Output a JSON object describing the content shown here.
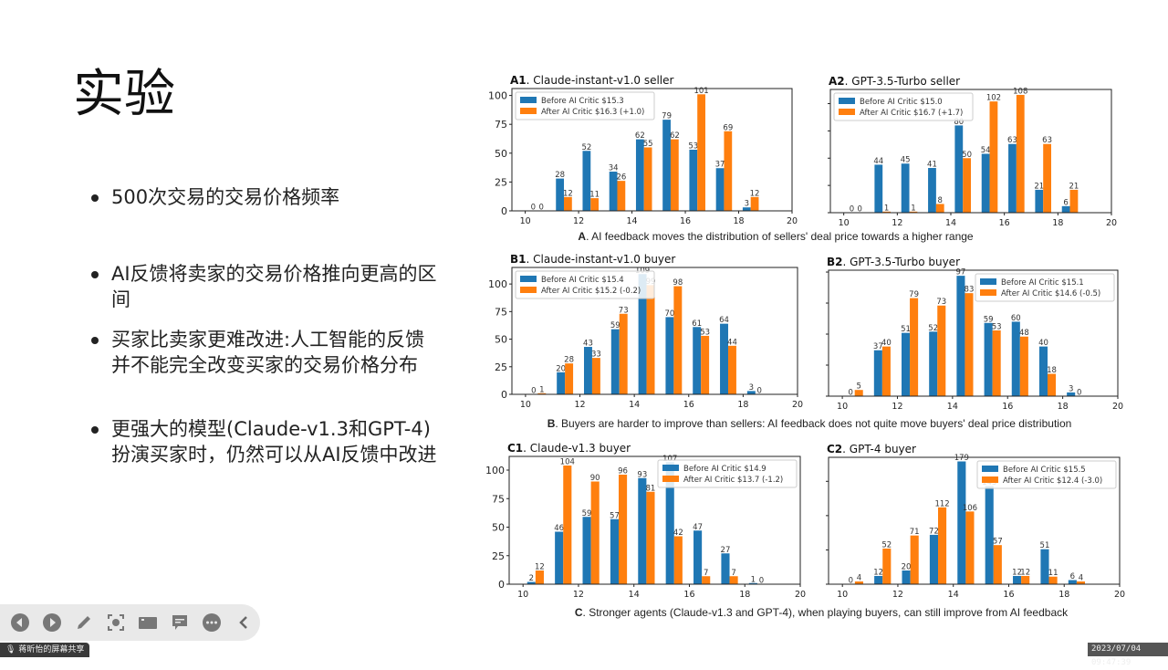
{
  "slide": {
    "title": "实验",
    "bullets": [
      "500次交易的交易价格频率",
      "AI反馈将卖家的交易价格推向更高的区间",
      "买家比卖家更难改进:人工智能的反馈并不能完全改变买家的交易价格分布",
      "更强大的模型(Claude-v1.3和GPT-4)扮演买家时，仍然可以从AI反馈中改进"
    ]
  },
  "captions": {
    "A": {
      "letter": "A",
      "text": ". AI feedback moves the distribution of sellers' deal price towards a higher range"
    },
    "B": {
      "letter": "B",
      "text": ". Buyers are harder to improve than sellers: AI feedback does not quite move buyers' deal price distribution"
    },
    "C": {
      "letter": "C",
      "text": ". Stronger agents (Claude-v1.3 and GPT-4), when playing buyers, can still improve from AI feedback"
    }
  },
  "colors": {
    "before": "#1f77b4",
    "after": "#ff7f0e"
  },
  "chart_data": [
    {
      "type": "bar",
      "id": "A1",
      "title_bold": "A1",
      "title": ". Claude-instant-v1.0 seller",
      "x_ticks": [
        10,
        12,
        14,
        16,
        18,
        20
      ],
      "y_ticks": [
        0,
        25,
        50,
        75,
        100
      ],
      "y_tick_labels": true,
      "xlim": [
        9.5,
        20
      ],
      "ylim": [
        0,
        106
      ],
      "bins": [
        10,
        11,
        12,
        13,
        14,
        15,
        16,
        17,
        18,
        19
      ],
      "legend": "top-left",
      "series": [
        {
          "name": "Before AI Critic $15.3",
          "values": [
            0,
            28,
            52,
            34,
            62,
            79,
            53,
            37,
            3,
            null
          ]
        },
        {
          "name": "After AI Critic $16.3 (+1.0)",
          "values": [
            0,
            12,
            11,
            26,
            55,
            62,
            101,
            69,
            12,
            null
          ]
        }
      ]
    },
    {
      "type": "bar",
      "id": "A2",
      "title_bold": "A2",
      "title": ". GPT-3.5-Turbo seller",
      "x_ticks": [
        10,
        12,
        14,
        16,
        18,
        20
      ],
      "y_ticks": [
        0,
        25,
        50,
        75,
        100
      ],
      "y_tick_labels": false,
      "xlim": [
        9.5,
        20
      ],
      "ylim": [
        0,
        113
      ],
      "bins": [
        10,
        11,
        12,
        13,
        14,
        15,
        16,
        17,
        18,
        19
      ],
      "legend": "top-left",
      "series": [
        {
          "name": "Before AI Critic $15.0",
          "values": [
            0,
            44,
            45,
            41,
            80,
            54,
            63,
            21,
            6,
            null
          ]
        },
        {
          "name": "After AI Critic $16.7 (+1.7)",
          "values": [
            0,
            1,
            1,
            8,
            50,
            102,
            108,
            63,
            21,
            null
          ]
        }
      ]
    },
    {
      "type": "bar",
      "id": "B1",
      "title_bold": "B1",
      "title": ". Claude-instant-v1.0 buyer",
      "x_ticks": [
        10,
        12,
        14,
        16,
        18,
        20
      ],
      "y_ticks": [
        0,
        25,
        50,
        75,
        100
      ],
      "y_tick_labels": true,
      "xlim": [
        9.5,
        20
      ],
      "ylim": [
        0,
        115
      ],
      "bins": [
        10,
        11,
        12,
        13,
        14,
        15,
        16,
        17,
        18,
        19
      ],
      "legend": "top-left",
      "series": [
        {
          "name": "Before AI Critic $15.4",
          "values": [
            0,
            20,
            43,
            59,
            109,
            70,
            61,
            64,
            3,
            null
          ]
        },
        {
          "name": "After AI Critic $15.2 (-0.2)",
          "values": [
            1,
            28,
            33,
            73,
            99,
            98,
            53,
            44,
            0,
            null
          ]
        }
      ]
    },
    {
      "type": "bar",
      "id": "B2",
      "title_bold": "B2",
      "title": ". GPT-3.5-Turbo buyer",
      "x_ticks": [
        10,
        12,
        14,
        16,
        18,
        20
      ],
      "y_ticks": [
        0,
        25,
        50,
        75,
        100
      ],
      "y_tick_labels": false,
      "xlim": [
        9.5,
        20
      ],
      "ylim": [
        0,
        101.5
      ],
      "bins": [
        10,
        11,
        12,
        13,
        14,
        15,
        16,
        17,
        18,
        19
      ],
      "legend": "top-right",
      "series": [
        {
          "name": "Before AI Critic $15.1",
          "values": [
            0,
            37,
            51,
            52,
            97,
            59,
            60,
            40,
            3,
            null
          ]
        },
        {
          "name": "After AI Critic $14.6 (-0.5)",
          "values": [
            5,
            40,
            79,
            73,
            83,
            53,
            48,
            18,
            0,
            null
          ]
        }
      ]
    },
    {
      "type": "bar",
      "id": "C1",
      "title_bold": "C1",
      "title": ". Claude-v1.3 buyer",
      "x_ticks": [
        10,
        12,
        14,
        16,
        18,
        20
      ],
      "y_ticks": [
        0,
        25,
        50,
        75,
        100
      ],
      "y_tick_labels": true,
      "xlim": [
        9.5,
        20
      ],
      "ylim": [
        0,
        112
      ],
      "bins": [
        10,
        11,
        12,
        13,
        14,
        15,
        16,
        17,
        18,
        19
      ],
      "legend": "top-right",
      "series": [
        {
          "name": "Before AI Critic $14.9",
          "values": [
            2,
            46,
            59,
            57,
            93,
            107,
            47,
            27,
            1,
            null
          ]
        },
        {
          "name": "After AI Critic $13.7 (-1.2)",
          "values": [
            12,
            104,
            90,
            96,
            81,
            42,
            7,
            7,
            0,
            null
          ]
        }
      ]
    },
    {
      "type": "bar",
      "id": "C2",
      "title_bold": "C2",
      "title": ". GPT-4 buyer",
      "x_ticks": [
        10,
        12,
        14,
        16,
        18,
        20
      ],
      "y_ticks": [
        0,
        50,
        100,
        150
      ],
      "y_tick_labels": false,
      "xlim": [
        9.5,
        20
      ],
      "ylim": [
        0,
        185
      ],
      "bins": [
        10,
        11,
        12,
        13,
        14,
        15,
        16,
        17,
        18,
        19
      ],
      "legend": "top-right",
      "series": [
        {
          "name": "Before AI Critic $15.5",
          "values": [
            0,
            12,
            20,
            72,
            179,
            143,
            12,
            51,
            6,
            null
          ]
        },
        {
          "name": "After AI Critic $12.4 (-3.0)",
          "values": [
            4,
            52,
            71,
            112,
            106,
            57,
            12,
            11,
            4,
            null
          ]
        }
      ]
    }
  ],
  "toolbar": {
    "icons": [
      "prev-icon",
      "next-icon",
      "pen-icon",
      "screenshot-icon",
      "camera-icon",
      "comment-icon",
      "more-icon",
      "collapse-icon"
    ]
  },
  "status": {
    "share_label": "蒋昕怡的屏幕共享",
    "timestamp": "2023/07/04 09:47:39"
  }
}
